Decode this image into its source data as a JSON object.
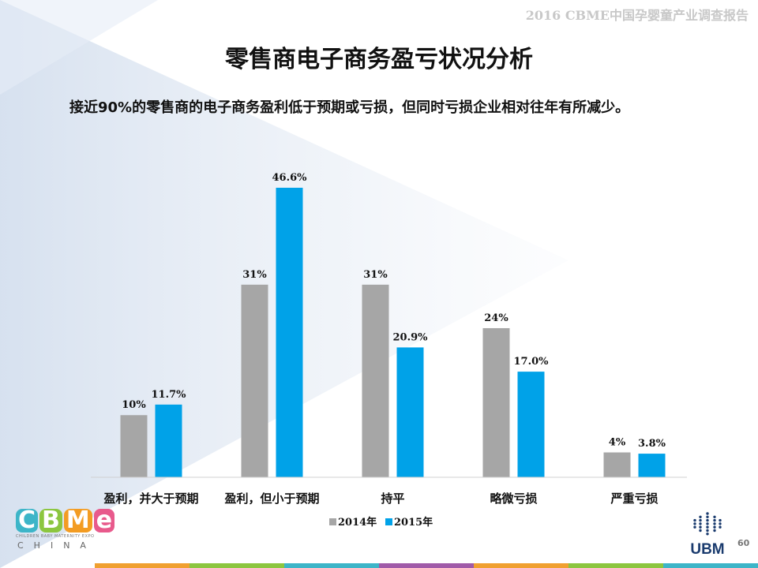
{
  "header_tag": "2016 CBME中国孕婴童产业调查报告",
  "title": "零售商电子商务盈亏状况分析",
  "subtitle": "接近90%的零售商的电子商务盈利低于预期或亏损，但同时亏损企业相对往年有所减少。",
  "page_number": "60",
  "logos": {
    "cbme_letters": [
      "C",
      "B",
      "M",
      "e"
    ],
    "cbme_colors": [
      "#3db5c8",
      "#8cc63f",
      "#f39c22",
      "#e85a8c"
    ],
    "cbme_sub": "CHILDREN BABY MATERNITY EXPO",
    "cbme_china": "CHINA",
    "ubm": "UBM",
    "ubm_color": "#1a3b6e"
  },
  "footer_colors": [
    "#f0a030",
    "#8cc63f",
    "#3db5c8",
    "#a05aa8",
    "#f0a030",
    "#8cc63f",
    "#3db5c8"
  ],
  "chart_data": {
    "type": "bar",
    "categories": [
      "盈利，并大于预期",
      "盈利，但小于预期",
      "持平",
      "略微亏损",
      "严重亏损"
    ],
    "series": [
      {
        "name": "2014年",
        "color": "#a6a6a6",
        "values": [
          10,
          31,
          31,
          24,
          4
        ],
        "labels": [
          "10%",
          "31%",
          "31%",
          "24%",
          "4%"
        ]
      },
      {
        "name": "2015年",
        "color": "#00a2e8",
        "values": [
          11.7,
          46.6,
          20.9,
          17.0,
          3.8
        ],
        "labels": [
          "11.7%",
          "46.6%",
          "20.9%",
          "17.0%",
          "3.8%"
        ]
      }
    ],
    "ylim": [
      0,
      50
    ],
    "legend_position": "bottom",
    "grid": false
  }
}
